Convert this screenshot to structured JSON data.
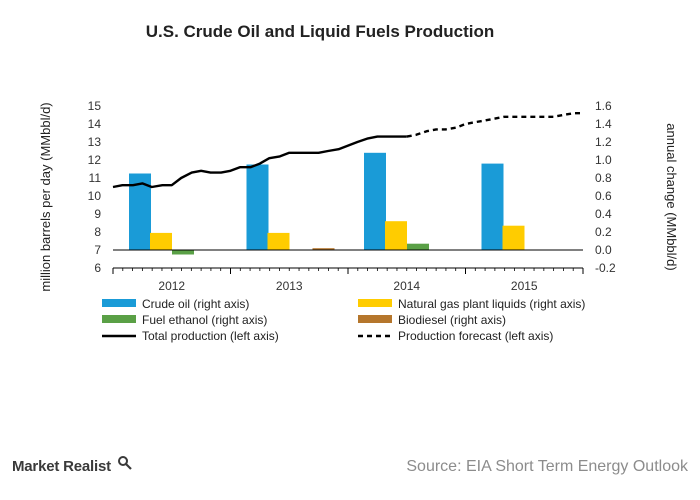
{
  "page": {
    "brand": "Market Realist",
    "source": "Source: EIA Short Term Energy Outlook"
  },
  "chart_data": {
    "type": "bar",
    "title": "U.S. Crude Oil and Liquid Fuels Production",
    "ylabel_left": "million barrels per day (MMbbl/d)",
    "ylabel_right": "annual change (MMbbl/d)",
    "ylim_left": [
      6,
      15
    ],
    "ylim_right": [
      -0.2,
      1.6
    ],
    "yticks_left": [
      "15",
      "14",
      "13",
      "12",
      "11",
      "10",
      "9",
      "8",
      "7",
      "6"
    ],
    "yticks_right": [
      "1.6",
      "1.4",
      "1.2",
      "1.0",
      "0.8",
      "0.6",
      "0.4",
      "0.2",
      "0.0",
      "-0.2"
    ],
    "categories": [
      "2012",
      "2013",
      "2014",
      "2015"
    ],
    "grid": false,
    "legend_position": "bottom",
    "bar_series": [
      {
        "name": "Crude oil (right axis)",
        "color": "#1a9bd7",
        "values": [
          0.85,
          0.95,
          1.08,
          0.96
        ]
      },
      {
        "name": "Natural gas plant liquids (right axis)",
        "color": "#ffcc00",
        "values": [
          0.19,
          0.19,
          0.32,
          0.27
        ]
      },
      {
        "name": "Fuel ethanol (right axis)",
        "color": "#5aa046",
        "values": [
          -0.05,
          0.0,
          0.07,
          0.0
        ]
      },
      {
        "name": "Biodiesel (right axis)",
        "color": "#b5762c",
        "values": [
          0.0,
          0.02,
          0.0,
          0.0
        ]
      }
    ],
    "line_series": [
      {
        "name": "Total production (left axis)",
        "style": "solid",
        "color": "#000000",
        "x": [
          2012.0,
          2012.08,
          2012.17,
          2012.25,
          2012.33,
          2012.42,
          2012.5,
          2012.58,
          2012.67,
          2012.75,
          2012.83,
          2012.92,
          2013.0,
          2013.08,
          2013.17,
          2013.25,
          2013.33,
          2013.42,
          2013.5,
          2013.58,
          2013.67,
          2013.75,
          2013.83,
          2013.92,
          2014.0,
          2014.08,
          2014.17,
          2014.25,
          2014.33,
          2014.42,
          2014.5
        ],
        "y": [
          10.5,
          10.6,
          10.6,
          10.7,
          10.5,
          10.6,
          10.6,
          11.0,
          11.3,
          11.4,
          11.3,
          11.3,
          11.4,
          11.6,
          11.6,
          11.8,
          12.1,
          12.2,
          12.4,
          12.4,
          12.4,
          12.4,
          12.5,
          12.6,
          12.8,
          13.0,
          13.2,
          13.3,
          13.3,
          13.3,
          13.3
        ]
      },
      {
        "name": "Production forecast (left axis)",
        "style": "dashed",
        "color": "#000000",
        "x": [
          2014.5,
          2014.58,
          2014.67,
          2014.75,
          2014.83,
          2014.92,
          2015.0,
          2015.08,
          2015.17,
          2015.25,
          2015.33,
          2015.42,
          2015.5,
          2015.58,
          2015.67,
          2015.75,
          2015.83,
          2015.92,
          2016.0
        ],
        "y": [
          13.3,
          13.4,
          13.6,
          13.7,
          13.7,
          13.8,
          14.0,
          14.1,
          14.2,
          14.3,
          14.4,
          14.4,
          14.4,
          14.4,
          14.4,
          14.4,
          14.5,
          14.6,
          14.6
        ]
      }
    ]
  }
}
